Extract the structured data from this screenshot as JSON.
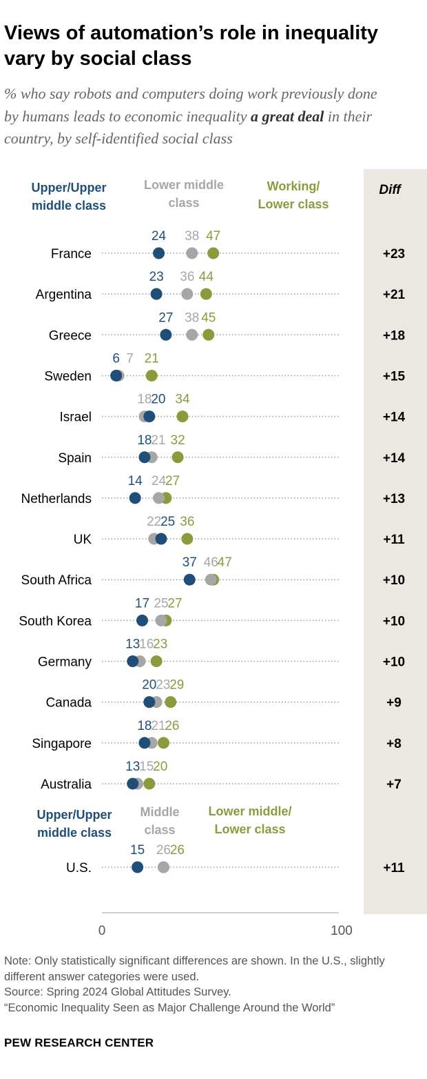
{
  "title": "Views of automation’s role in inequality vary by social class",
  "subtitle": {
    "before": "% who say robots and computers doing work previously done by humans leads to economic inequality ",
    "emphasis": "a great deal",
    "after": " in their country, by self-identified social class"
  },
  "colors": {
    "upper": "#1f4e79",
    "middle": "#a6a6a6",
    "working": "#8c9a3c",
    "diff_bg": "#ebe8e2",
    "axis": "#bfbfbf"
  },
  "chart_data": {
    "type": "dot",
    "xlim": [
      0,
      100
    ],
    "x_ticks": [
      "0",
      "100"
    ],
    "diff_header": "Diff",
    "legend": {
      "upper": "Upper/Upper middle class",
      "middle": "Lower middle class",
      "working": "Working/ Lower class"
    },
    "legend_us": {
      "upper": "Upper/Upper middle class",
      "middle": "Middle class",
      "working": "Lower middle/ Lower class"
    },
    "rows": [
      {
        "country": "France",
        "upper": 24,
        "middle": 38,
        "working": 47,
        "diff": "+23"
      },
      {
        "country": "Argentina",
        "upper": 23,
        "middle": 36,
        "working": 44,
        "diff": "+21"
      },
      {
        "country": "Greece",
        "upper": 27,
        "middle": 38,
        "working": 45,
        "diff": "+18"
      },
      {
        "country": "Sweden",
        "upper": 6,
        "middle": 7,
        "working": 21,
        "diff": "+15"
      },
      {
        "country": "Israel",
        "upper": 20,
        "middle": 18,
        "working": 34,
        "diff": "+14"
      },
      {
        "country": "Spain",
        "upper": 18,
        "middle": 21,
        "working": 32,
        "diff": "+14"
      },
      {
        "country": "Netherlands",
        "upper": 14,
        "middle": 24,
        "working": 27,
        "diff": "+13"
      },
      {
        "country": "UK",
        "upper": 25,
        "middle": 22,
        "working": 36,
        "diff": "+11"
      },
      {
        "country": "South Africa",
        "upper": 37,
        "middle": 46,
        "working": 47,
        "diff": "+10"
      },
      {
        "country": "South Korea",
        "upper": 17,
        "middle": 25,
        "working": 27,
        "diff": "+10"
      },
      {
        "country": "Germany",
        "upper": 13,
        "middle": 16,
        "working": 23,
        "diff": "+10"
      },
      {
        "country": "Canada",
        "upper": 20,
        "middle": 23,
        "working": 29,
        "diff": "+9"
      },
      {
        "country": "Singapore",
        "upper": 18,
        "middle": 21,
        "working": 26,
        "diff": "+8"
      },
      {
        "country": "Australia",
        "upper": 13,
        "middle": 15,
        "working": 20,
        "diff": "+7"
      }
    ],
    "us_row": {
      "country": "U.S.",
      "upper": 15,
      "middle": 26,
      "working": 26,
      "diff": "+11"
    }
  },
  "notes": [
    "Note: Only statistically significant differences are shown. In the U.S., slightly different answer categories were used.",
    "Source: Spring 2024 Global Attitudes Survey.",
    "“Economic Inequality Seen as Major Challenge Around the World”"
  ],
  "brand": "PEW RESEARCH CENTER"
}
